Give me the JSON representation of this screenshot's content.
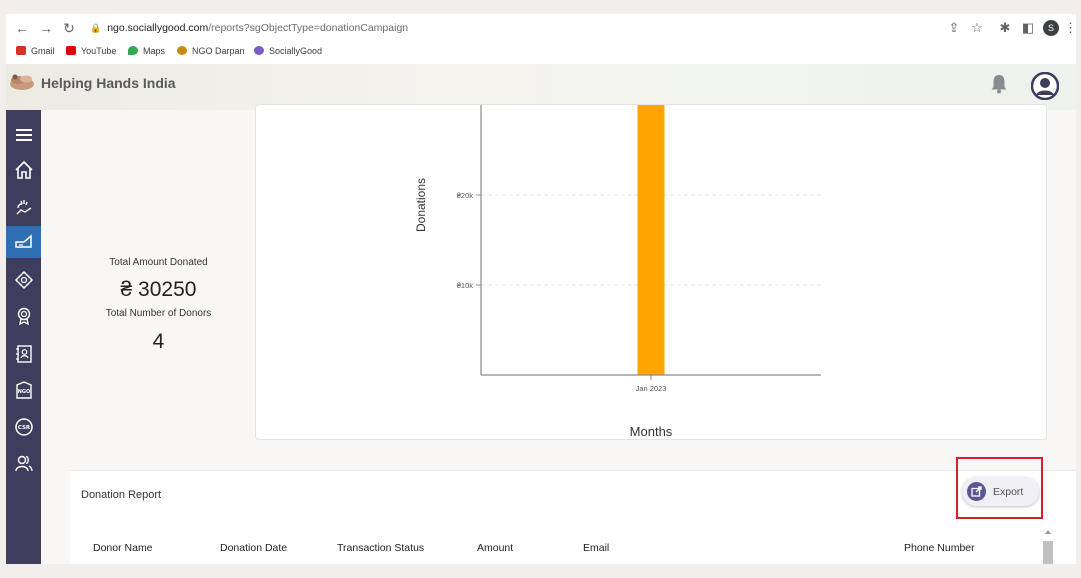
{
  "browser": {
    "url_domain": "ngo.sociallygood.com",
    "url_path": "/reports?sgObjectType=donationCampaign",
    "profile_initial": "S",
    "bookmarks": [
      {
        "label": "Gmail",
        "color": "#d93025"
      },
      {
        "label": "YouTube",
        "color": "#e00000"
      },
      {
        "label": "Maps",
        "color": "#34a853"
      },
      {
        "label": "NGO Darpan",
        "color": "#c88a12"
      },
      {
        "label": "SociallyGood",
        "color": "#7b5cc4"
      }
    ]
  },
  "header": {
    "org_name": "Helping Hands India"
  },
  "sidebar": {
    "items": [
      {
        "icon": "menu-icon"
      },
      {
        "icon": "home-icon"
      },
      {
        "icon": "donate-hands-icon"
      },
      {
        "icon": "campaign-icon",
        "active": true
      },
      {
        "icon": "tag-icon"
      },
      {
        "icon": "badge-icon"
      },
      {
        "icon": "contacts-icon"
      },
      {
        "icon": "ngo-icon"
      },
      {
        "icon": "csr-icon"
      },
      {
        "icon": "people-icon"
      }
    ],
    "csr_text": "CSR",
    "ngo_text": "NGO",
    "active_color": "#2e6fb3",
    "bg_color": "#3f3d5e"
  },
  "stats": {
    "total_amount_label": "Total Amount Donated",
    "total_amount_value": "₴ 30250",
    "total_donors_label": "Total Number of Donors",
    "total_donors_value": "4"
  },
  "chart_data": {
    "type": "bar",
    "categories": [
      "Jan 2023"
    ],
    "values": [
      30250
    ],
    "ylabel": "Donations",
    "xlabel": "Months",
    "yticks": [
      {
        "value": 10000,
        "label": "₴10k"
      },
      {
        "value": 20000,
        "label": "₴20k"
      }
    ],
    "ylim": [
      0,
      30250
    ],
    "bar_color": "#ffa500",
    "grid": true
  },
  "report": {
    "title": "Donation Report",
    "export_label": "Export",
    "columns": [
      "Donor Name",
      "Donation Date",
      "Transaction Status",
      "Amount",
      "Email",
      "Phone Number"
    ]
  }
}
